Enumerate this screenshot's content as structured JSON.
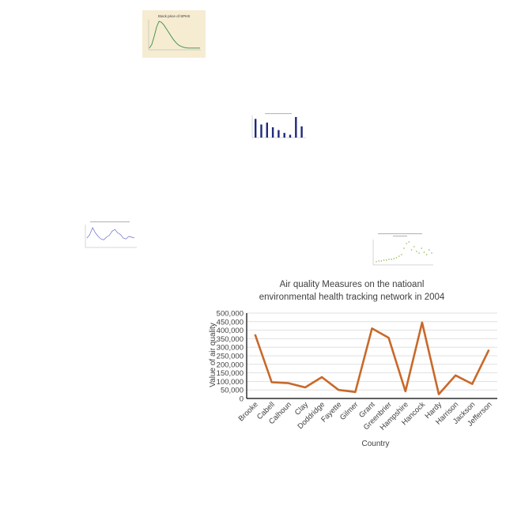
{
  "thumbnails": {
    "stock": {
      "title": "Stock price of SPHS",
      "colors": {
        "background": "#f5ecd2",
        "line": "#3a8a4a"
      },
      "values": [
        2,
        10,
        28,
        48,
        60,
        58,
        52,
        44,
        36,
        28,
        20,
        14,
        9,
        6,
        4,
        3,
        2,
        2,
        2,
        2,
        2,
        2
      ]
    },
    "bars": {
      "colors": {
        "bar": "#1f2a7a"
      },
      "values": [
        20,
        14,
        16,
        11,
        8,
        5,
        3,
        22,
        12
      ]
    },
    "line": {
      "colors": {
        "line": "#6a6acd"
      },
      "values": [
        10,
        14,
        22,
        16,
        12,
        9,
        8,
        11,
        13,
        18,
        20,
        16,
        14,
        10,
        9,
        12,
        11,
        10
      ]
    },
    "scatter": {
      "colors": {
        "point": "#8ab84a"
      },
      "values": [
        3,
        4,
        4,
        5,
        5,
        6,
        6,
        7,
        8,
        10,
        12,
        20,
        26,
        28,
        18,
        22,
        16,
        14,
        20,
        15,
        12,
        18,
        14
      ]
    }
  },
  "chart_data": {
    "type": "line",
    "title": "Air quality Measures on the natioanl environmental health tracking network in 2004",
    "xlabel": "Country",
    "ylabel": "Value of air quality",
    "ylim": [
      0,
      500000
    ],
    "yticks": [
      0,
      50000,
      100000,
      150000,
      200000,
      250000,
      300000,
      350000,
      400000,
      450000,
      500000
    ],
    "ytick_labels": [
      "0",
      "50,000",
      "100,000",
      "150,000",
      "200,000",
      "250,000",
      "300,000",
      "350,000",
      "400,000",
      "450,000",
      "500,000"
    ],
    "grid": true,
    "categories": [
      "Brooke",
      "Cabell",
      "Calhoun",
      "Clay",
      "Doddridge",
      "Fayette",
      "Gilmer",
      "Grant",
      "Greenbrier",
      "Hampshire",
      "Hancock",
      "Hardy",
      "Harrison",
      "Jackson",
      "Jefferson"
    ],
    "series": [
      {
        "values": [
          375000,
          95000,
          90000,
          65000,
          125000,
          50000,
          38000,
          410000,
          355000,
          42000,
          445000,
          25000,
          135000,
          85000,
          285000
        ]
      }
    ],
    "colors": {
      "line": "#c8692a",
      "grid": "#d9d9d9",
      "axis": "#000000",
      "text": "#404040"
    }
  }
}
